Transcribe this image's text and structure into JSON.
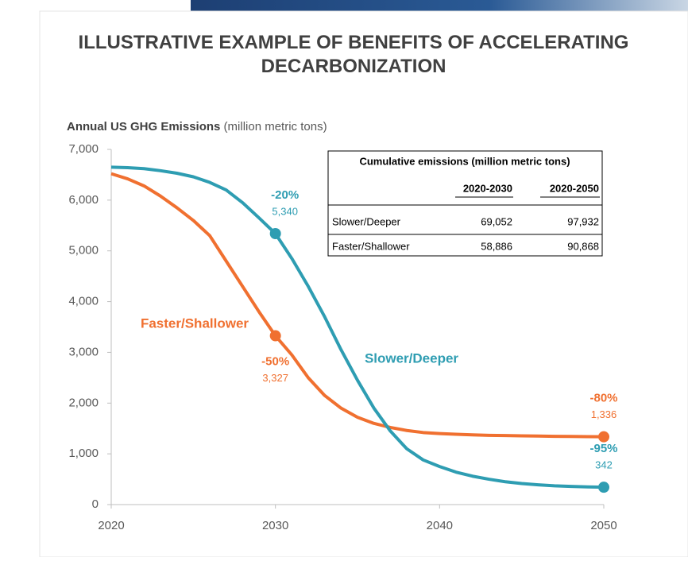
{
  "chart_data": {
    "type": "line",
    "title": "ILLUSTRATIVE EXAMPLE OF BENEFITS OF ACCELERATING DECARBONIZATION",
    "y_label_bold": "Annual US GHG Emissions",
    "y_label_unit": "(million metric tons)",
    "x": [
      2020,
      2021,
      2022,
      2023,
      2024,
      2025,
      2026,
      2027,
      2028,
      2029,
      2030,
      2031,
      2032,
      2033,
      2034,
      2035,
      2036,
      2037,
      2038,
      2039,
      2040,
      2041,
      2042,
      2043,
      2044,
      2045,
      2046,
      2047,
      2048,
      2049,
      2050
    ],
    "xlim": [
      2020,
      2050
    ],
    "xticks": [
      2020,
      2030,
      2040,
      2050
    ],
    "ylim": [
      0,
      7000
    ],
    "yticks": [
      0,
      {
        "value": 1000,
        "label": "1,000"
      },
      {
        "value": 2000,
        "label": "2,000"
      },
      {
        "value": 3000,
        "label": "3,000"
      },
      {
        "value": 4000,
        "label": "4,000"
      },
      {
        "value": 5000,
        "label": "5,000"
      },
      {
        "value": 6000,
        "label": "6,000"
      },
      {
        "value": 7000,
        "label": "7,000"
      }
    ],
    "series": [
      {
        "name": "Faster/Shallower",
        "color": "#f07030",
        "values": [
          6520,
          6420,
          6280,
          6080,
          5850,
          5600,
          5300,
          4800,
          4300,
          3800,
          3327,
          2950,
          2500,
          2150,
          1900,
          1720,
          1600,
          1520,
          1460,
          1420,
          1400,
          1385,
          1375,
          1365,
          1360,
          1355,
          1350,
          1345,
          1342,
          1339,
          1336
        ],
        "value_labels": [
          null,
          null,
          null,
          null,
          null,
          null,
          null,
          null,
          null,
          null,
          "3,327",
          null,
          null,
          null,
          null,
          null,
          null,
          null,
          null,
          null,
          null,
          null,
          null,
          null,
          null,
          null,
          null,
          null,
          null,
          null,
          "1,336"
        ],
        "change_labels": [
          null,
          null,
          null,
          null,
          null,
          null,
          null,
          null,
          null,
          null,
          "-50%",
          null,
          null,
          null,
          null,
          null,
          null,
          null,
          null,
          null,
          null,
          null,
          null,
          null,
          null,
          null,
          null,
          null,
          null,
          null,
          "-80%"
        ]
      },
      {
        "name": "Slower/Deeper",
        "color": "#2e9db2",
        "values": [
          6650,
          6640,
          6620,
          6580,
          6530,
          6460,
          6350,
          6200,
          5950,
          5650,
          5340,
          4850,
          4300,
          3700,
          3050,
          2450,
          1900,
          1450,
          1100,
          880,
          750,
          640,
          560,
          500,
          450,
          415,
          390,
          370,
          358,
          348,
          342
        ],
        "value_labels": [
          null,
          null,
          null,
          null,
          null,
          null,
          null,
          null,
          null,
          null,
          "5,340",
          null,
          null,
          null,
          null,
          null,
          null,
          null,
          null,
          null,
          null,
          null,
          null,
          null,
          null,
          null,
          null,
          null,
          null,
          null,
          "342"
        ],
        "change_labels": [
          null,
          null,
          null,
          null,
          null,
          null,
          null,
          null,
          null,
          null,
          "-20%",
          null,
          null,
          null,
          null,
          null,
          null,
          null,
          null,
          null,
          null,
          null,
          null,
          null,
          null,
          null,
          null,
          null,
          null,
          null,
          "-95%"
        ]
      }
    ],
    "table": {
      "title": "Cumulative emissions (million metric tons)",
      "columns": [
        "2020-2030",
        "2020-2050"
      ],
      "rows": [
        [
          "Slower/Deeper",
          "69,052",
          "97,932"
        ],
        [
          "Faster/Shallower",
          "58,886",
          "90,868"
        ]
      ]
    }
  }
}
